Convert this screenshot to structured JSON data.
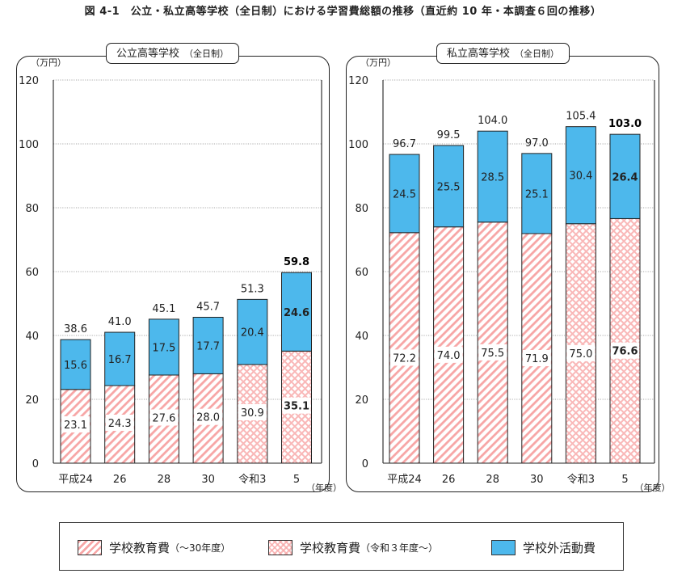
{
  "figure_title": "図 4-1　公立・私立高等学校（全日制）における学習費総額の推移（直近約 10 年・本調査６回の推移）",
  "panels": {
    "public": {
      "label": "公立高等学校",
      "label_sub": "（全日制）"
    },
    "private": {
      "label": "私立高等学校",
      "label_sub": "（全日制）"
    }
  },
  "legend": {
    "a_main": "学校教育費",
    "a_sub": "（～30年度）",
    "b_main": "学校教育費",
    "b_sub": "（令和３年度～）",
    "c_main": "学校外活動費"
  },
  "colors": {
    "outside": "#4db8ec",
    "hatch": "#f7a6a6",
    "highlight_total": "#000000"
  },
  "chart_data": [
    {
      "type": "bar",
      "stacked": true,
      "title": "公立高等学校（全日制）",
      "unit_label": "（万円）",
      "xlabel": "（年度）",
      "categories": [
        "平成24",
        "26",
        "28",
        "30",
        "令和3",
        "5"
      ],
      "series": [
        {
          "name": "学校教育費",
          "values": [
            23.1,
            24.3,
            27.6,
            28.0,
            30.9,
            35.1
          ]
        },
        {
          "name": "学校外活動費",
          "values": [
            15.6,
            16.7,
            17.5,
            17.7,
            20.4,
            24.6
          ]
        }
      ],
      "school_fill": [
        "diagonal",
        "diagonal",
        "diagonal",
        "diagonal",
        "check",
        "check"
      ],
      "totals": [
        38.6,
        41.0,
        45.1,
        45.7,
        51.3,
        59.8
      ],
      "ylim": [
        0,
        120
      ],
      "yticks": [
        0,
        20,
        40,
        60,
        80,
        100,
        120
      ],
      "grid": true,
      "bold_last": true
    },
    {
      "type": "bar",
      "stacked": true,
      "title": "私立高等学校（全日制）",
      "unit_label": "（万円）",
      "xlabel": "（年度）",
      "categories": [
        "平成24",
        "26",
        "28",
        "30",
        "令和3",
        "5"
      ],
      "series": [
        {
          "name": "学校教育費",
          "values": [
            72.2,
            74.0,
            75.5,
            71.9,
            75.0,
            76.6
          ]
        },
        {
          "name": "学校外活動費",
          "values": [
            24.5,
            25.5,
            28.5,
            25.1,
            30.4,
            26.4
          ]
        }
      ],
      "school_fill": [
        "diagonal",
        "diagonal",
        "diagonal",
        "diagonal",
        "check",
        "check"
      ],
      "totals": [
        96.7,
        99.5,
        104.0,
        97.0,
        105.4,
        103.0
      ],
      "ylim": [
        0,
        120
      ],
      "yticks": [
        0,
        20,
        40,
        60,
        80,
        100,
        120
      ],
      "grid": true,
      "bold_last": true
    }
  ]
}
